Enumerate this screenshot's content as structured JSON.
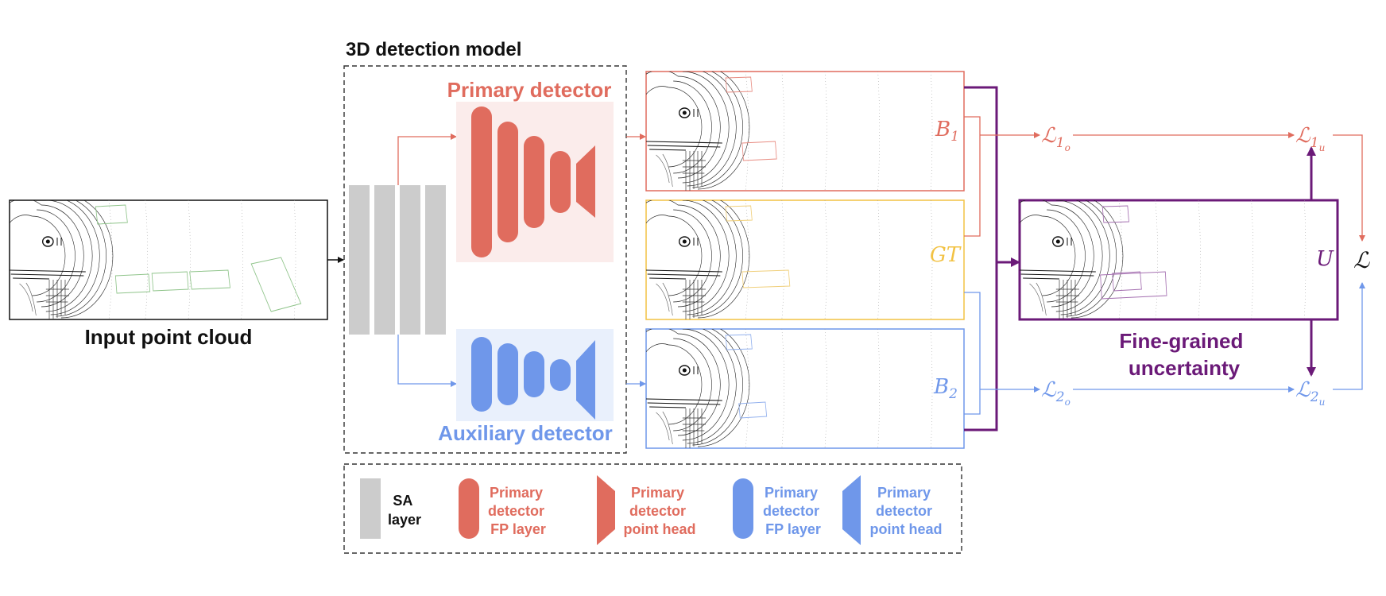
{
  "title": "3D detection model",
  "input_label": "Input point cloud",
  "primary_label": "Primary detector",
  "auxiliary_label": "Auxiliary detector",
  "uncertainty_label": [
    "Fine-grained",
    "uncertainty"
  ],
  "outputs": {
    "b1": {
      "main": "B",
      "sub": "1"
    },
    "gt": "GT",
    "b2": {
      "main": "B",
      "sub": "2"
    },
    "u": "U"
  },
  "losses": {
    "l1o": {
      "sym": "ℒ",
      "sub": "1",
      "subsub": "o"
    },
    "l1u": {
      "sym": "ℒ",
      "sub": "1",
      "subsub": "u"
    },
    "l2o": {
      "sym": "ℒ",
      "sub": "2",
      "subsub": "o"
    },
    "l2u": {
      "sym": "ℒ",
      "sub": "2",
      "subsub": "u"
    },
    "total": "ℒ"
  },
  "legend": {
    "sa": [
      "SA",
      "layer"
    ],
    "primary_fp": [
      "Primary",
      "detector",
      "FP layer"
    ],
    "primary_head": [
      "Primary",
      "detector",
      "point head"
    ],
    "aux_fp": [
      "Primary",
      "detector",
      "FP layer"
    ],
    "aux_head": [
      "Primary",
      "detector",
      "point head"
    ]
  },
  "colors": {
    "primary": "#e06c5e",
    "primary_bg": "#fbeceb",
    "auxiliary": "#6f97ea",
    "auxiliary_bg": "#e9f0fc",
    "gt": "#f2c244",
    "uncertainty": "#6b1a78",
    "sa": "#cccccc",
    "text": "#111111"
  }
}
